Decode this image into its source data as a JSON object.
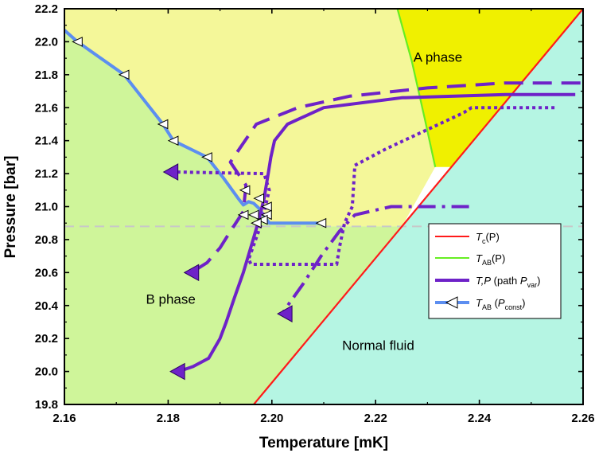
{
  "chart_data": {
    "type": "line",
    "title": "",
    "xlabel": "Temperature [mK]",
    "ylabel": "Pressure [bar]",
    "xlim": [
      2.16,
      2.26
    ],
    "ylim": [
      19.8,
      22.2
    ],
    "x_ticks": [
      "2.16",
      "2.18",
      "2.20",
      "2.22",
      "2.24",
      "2.26"
    ],
    "y_ticks": [
      "19.8",
      "20.0",
      "20.2",
      "20.4",
      "20.6",
      "20.8",
      "21.0",
      "21.2",
      "21.4",
      "21.6",
      "21.8",
      "22.0",
      "22.2"
    ],
    "grid": false,
    "legend_position": "right",
    "colors": {
      "normal_fluid": "#b5f5e3",
      "b_phase": "#cff59a",
      "a_phase_stable": "#f0f000",
      "a_phase_meta": "#f4f799",
      "tc": "#ff1a1a",
      "tab": "#66ee22",
      "path": "#6e22c8",
      "tab_const": "#5c8ef0",
      "dashed_guide": "#c8c8c8"
    },
    "region_labels": [
      {
        "text": "A phase",
        "x": 2.232,
        "y": 21.88
      },
      {
        "text": "B phase",
        "x": 2.1805,
        "y": 20.41
      },
      {
        "text": "Normal fluid",
        "x": 2.2205,
        "y": 20.13
      }
    ],
    "legend": {
      "tc": {
        "main": "T",
        "sub": "c",
        "rest": "(P)"
      },
      "tab": {
        "main": "T",
        "sub": "AB",
        "rest": "(P)"
      },
      "path": {
        "main": "T,P",
        "rest1": " (path ",
        "pmain": "P",
        "sub": "var",
        "rest2": ")"
      },
      "tab_const": {
        "main": "T",
        "sub": "AB",
        "rest1": " (",
        "pmain": "P",
        "psub": "const",
        "rest2": ")"
      }
    },
    "guide_line": {
      "name": "dashed horizontal guide",
      "y": 20.88
    },
    "series": [
      {
        "key": "tc",
        "x": [
          2.1965,
          2.26
        ],
        "y": [
          19.8,
          22.2
        ]
      },
      {
        "key": "tab",
        "x": [
          2.2242,
          2.227,
          2.2295,
          2.2315
        ],
        "y": [
          22.2,
          21.88,
          21.53,
          21.24
        ]
      },
      {
        "key": "tab_const",
        "x": [
          2.16,
          2.1625,
          2.1715,
          2.179,
          2.181,
          2.1875,
          2.1905,
          2.1935,
          2.1945,
          2.1955,
          2.1965,
          2.1975,
          2.1995,
          2.2035,
          2.2095
        ],
        "y": [
          22.07,
          22.0,
          21.8,
          21.5,
          21.4,
          21.3,
          21.18,
          21.05,
          21.01,
          21.03,
          21.02,
          20.99,
          20.9,
          20.9,
          20.9
        ]
      },
      {
        "key": "tab_const_markers",
        "x": [
          2.1625,
          2.1715,
          2.179,
          2.181,
          2.1875,
          2.1948,
          2.1975,
          2.199,
          2.1945,
          2.1965,
          2.199,
          2.1982,
          2.197,
          2.2095
        ],
        "y": [
          22.0,
          21.8,
          21.5,
          21.4,
          21.3,
          21.1,
          21.05,
          21.0,
          20.95,
          20.95,
          20.95,
          20.92,
          20.9,
          20.9
        ]
      },
      {
        "key": "path_solid",
        "x": [
          2.2585,
          2.245,
          2.225,
          2.21,
          2.203,
          2.2005,
          2.1998,
          2.1993,
          2.1985,
          2.1975,
          2.1962,
          2.1945,
          2.1928,
          2.1912,
          2.19,
          2.1878,
          2.1848,
          2.182
        ],
        "y": [
          21.68,
          21.68,
          21.66,
          21.6,
          21.5,
          21.4,
          21.3,
          21.2,
          21.05,
          20.92,
          20.78,
          20.6,
          20.45,
          20.3,
          20.2,
          20.08,
          20.03,
          20.0
        ]
      },
      {
        "key": "path_dashed",
        "x": [
          2.2595,
          2.245,
          2.23,
          2.215,
          2.205,
          2.197,
          2.192,
          2.1935,
          2.195,
          2.1945,
          2.192,
          2.19,
          2.1875,
          2.1845
        ],
        "y": [
          21.75,
          21.75,
          21.72,
          21.67,
          21.6,
          21.5,
          21.27,
          21.2,
          21.13,
          20.97,
          20.85,
          20.75,
          20.66,
          20.6
        ]
      },
      {
        "key": "path_dotted",
        "x": [
          2.2545,
          2.2385,
          2.237,
          2.222,
          2.216,
          2.2155,
          2.214,
          2.213,
          2.2125,
          2.196,
          2.1955,
          2.198,
          2.1995,
          2.1985,
          2.181
        ],
        "y": [
          21.6,
          21.6,
          21.57,
          21.35,
          21.25,
          21.0,
          20.9,
          20.75,
          20.65,
          20.65,
          20.68,
          20.9,
          21.1,
          21.2,
          21.21
        ]
      },
      {
        "key": "path_dashdot",
        "x": [
          2.238,
          2.223,
          2.216,
          2.213,
          2.2095,
          2.206,
          2.2035,
          2.202
        ],
        "y": [
          21.0,
          21.0,
          20.95,
          20.85,
          20.7,
          20.53,
          20.42,
          20.35
        ]
      },
      {
        "key": "path_arrowheads",
        "x": [
          2.1818,
          2.1845,
          2.1805,
          2.2025
        ],
        "y": [
          20.0,
          20.6,
          21.21,
          20.35
        ]
      }
    ]
  }
}
